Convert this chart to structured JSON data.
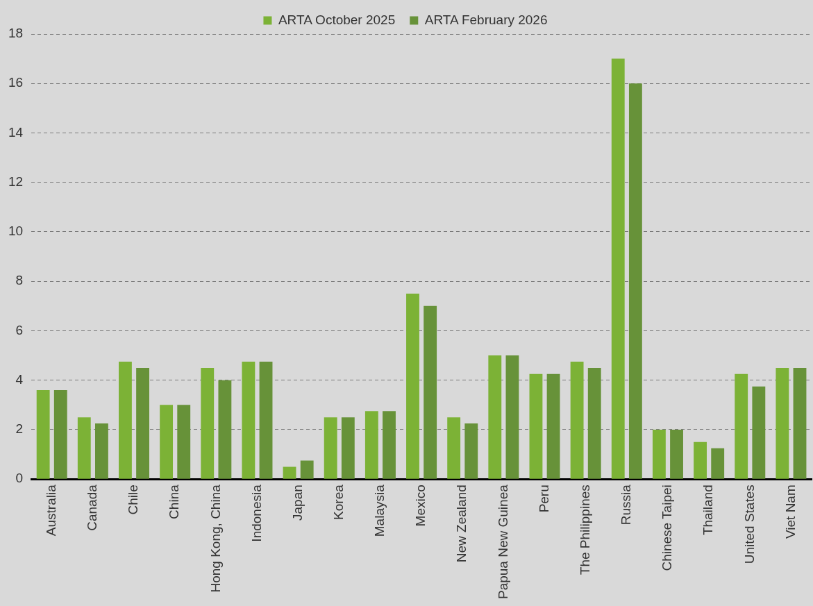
{
  "chart_data": {
    "type": "bar",
    "categories": [
      "Australia",
      "Canada",
      "Chile",
      "China",
      "Hong Kong, China",
      "Indonesia",
      "Japan",
      "Korea",
      "Malaysia",
      "Mexico",
      "New Zealand",
      "Papua New Guinea",
      "Peru",
      "The Philippines",
      "Russia",
      "Chinese Taipei",
      "Thailand",
      "United States",
      "Viet Nam"
    ],
    "series": [
      {
        "name": "ARTA October 2025",
        "color": "#7cb236",
        "values": [
          3.6,
          2.5,
          4.75,
          3,
          4.5,
          4.75,
          0.5,
          2.5,
          2.75,
          7.5,
          2.5,
          5,
          4.25,
          4.75,
          17,
          2,
          1.5,
          4.25,
          4.5
        ]
      },
      {
        "name": "ARTA February 2026",
        "color": "#679239",
        "values": [
          3.6,
          2.25,
          4.5,
          3,
          4,
          4.75,
          0.75,
          2.5,
          2.75,
          7,
          2.25,
          5,
          4.25,
          4.5,
          16,
          2,
          1.25,
          3.75,
          4.5
        ]
      }
    ],
    "ylim": [
      0,
      18
    ],
    "yticks": [
      0,
      2,
      4,
      6,
      8,
      10,
      12,
      14,
      16,
      18
    ],
    "grid": "y",
    "legend": "top"
  }
}
